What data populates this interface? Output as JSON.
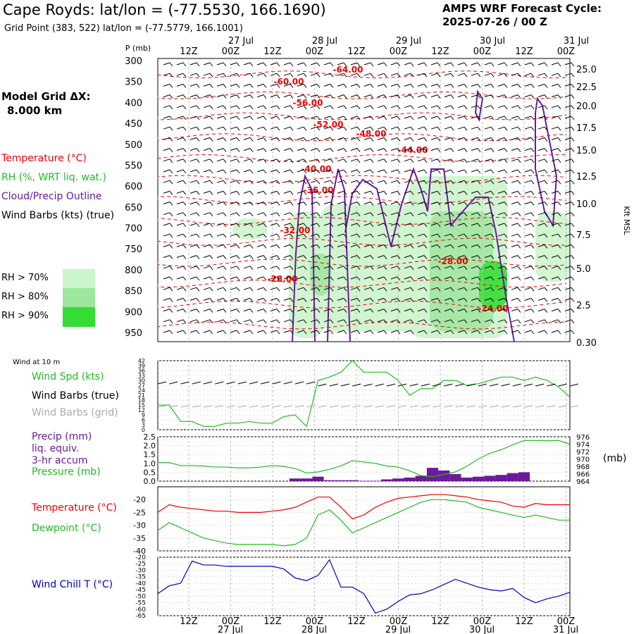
{
  "header": {
    "title": "Cape Royds:  lat/lon = (-77.5530, 166.1690)",
    "subtitle": "Grid Point (383, 522) lat/lon = (-77.5779, 166.1001)",
    "cycle_line1": "AMPS WRF Forecast Cycle:",
    "cycle_line2": "2025-07-26 / 00  Z"
  },
  "legend": {
    "model_grid_line1": "Model Grid ΔX:",
    "model_grid_line2": "8.000 km",
    "temperature": "Temperature (°C)",
    "rh": "RH (%, WRT liq. wat.)",
    "cloud": "Cloud/Precip Outline",
    "wind": "Wind Barbs (kts) (true)",
    "rh70": "RH > 70%",
    "rh80": "RH > 80%",
    "rh90": "RH > 90%",
    "wind_at_10m": "Wind at 10 m",
    "wind_spd": "Wind Spd (kts)",
    "wind_barbs_true": "Wind Barbs (true)",
    "wind_barbs_grid": "Wind Barbs (grid)",
    "precip_1": "Precip (mm)",
    "precip_2": "liq. equiv.",
    "precip_3": "3-hr accum",
    "pressure": "Pressure (mb)",
    "pressure_unit": "(mb)",
    "temperature2": "Temperature (°C)",
    "dewpoint": "Dewpoint (°C)",
    "wind_chill": "Wind Chill T (°C)"
  },
  "colors": {
    "temperature": "#ee0000",
    "rh_label": "#22bb22",
    "cloud": "#6a1a9a",
    "rh70": "#ccf5cc",
    "rh80": "#9ee69e",
    "rh90": "#33dd33",
    "wind_chill": "#0000bb",
    "barbs_grid": "#aaaaaa"
  },
  "time_axis": {
    "top_tick_labels": [
      "12Z",
      "00Z",
      "12Z",
      "00Z",
      "12Z",
      "00Z",
      "12Z",
      "00Z",
      "12Z",
      "00Z"
    ],
    "top_date_labels": [
      "27 Jul",
      "28 Jul",
      "29 Jul",
      "30 Jul",
      "31 Jul"
    ],
    "bottom_tick_labels": [
      "12Z",
      "00Z",
      "12Z",
      "00Z",
      "12Z",
      "00Z",
      "12Z",
      "00Z",
      "12Z",
      "00Z"
    ],
    "bottom_date_labels": [
      "27 Jul",
      "28 Jul",
      "29 Jul",
      "30 Jul",
      "31 Jul"
    ]
  },
  "chart_data": [
    {
      "type": "heatmap",
      "panel": "profile",
      "ylabel": "P (mb)",
      "y2label": "Kft MSL",
      "p_ticks": [
        300,
        350,
        400,
        450,
        500,
        550,
        600,
        650,
        700,
        750,
        800,
        850,
        900,
        950
      ],
      "kft_ticks": [
        "25.0",
        "22.5",
        "20.0",
        "17.5",
        "15.0",
        "12.5",
        "10.0",
        "7.5",
        "5.0",
        "2.5",
        "0.30"
      ],
      "temperature_labels": [
        "-64.00",
        "-60.00",
        "-56.00",
        "-52.00",
        "-48.00",
        "-44.00",
        "-40.00",
        "-36.00",
        "-32.00",
        "-28.00",
        "-28.00",
        "-24.00"
      ]
    },
    {
      "type": "line",
      "panel": "wind",
      "y_ticks": [
        0,
        3,
        6,
        9,
        12,
        15,
        18,
        21,
        24,
        27,
        30,
        33,
        36,
        39,
        42
      ],
      "ylim": [
        0,
        42
      ],
      "series": [
        {
          "name": "Wind Spd (kts)",
          "values": [
            15,
            15,
            5,
            5,
            2,
            2,
            4,
            4,
            5,
            4,
            4,
            8,
            9,
            2,
            30,
            32,
            35,
            42,
            35,
            35,
            35,
            30,
            21,
            25,
            25,
            30,
            30,
            27,
            28,
            30,
            32,
            32,
            30,
            32,
            30,
            26,
            20
          ]
        }
      ]
    },
    {
      "type": "bar",
      "panel": "precip",
      "y_ticks": [
        "0.0",
        "0.5",
        "1.0",
        "1.5",
        "2.0",
        "2.5"
      ],
      "ylim": [
        0,
        2.5
      ],
      "y2_ticks": [
        964,
        966,
        968,
        970,
        972,
        974,
        976
      ],
      "y2lim": [
        964,
        976
      ],
      "precip_values": [
        0,
        0,
        0,
        0,
        0,
        0,
        0,
        0,
        0,
        0,
        0,
        0,
        0.15,
        0.15,
        0.25,
        0.05,
        0.05,
        0.05,
        0.02,
        0.02,
        0.1,
        0.15,
        0.2,
        0.3,
        0.75,
        0.6,
        0.4,
        0.2,
        0.25,
        0.3,
        0.35,
        0.45,
        0.5,
        0,
        0,
        0,
        0
      ],
      "series": [
        {
          "name": "Pressure (mb)",
          "values": [
            969,
            969,
            968.2,
            968.2,
            968.1,
            967.8,
            967.8,
            967.6,
            967.6,
            967.8,
            968.2,
            968,
            967.4,
            966.2,
            966.5,
            967.2,
            968.1,
            969.5,
            969.2,
            968.8,
            968.1,
            967.8,
            966.8,
            965.5,
            965.2,
            965.8,
            966.5,
            968,
            970,
            971.5,
            972.5,
            973.8,
            975,
            975,
            974.9,
            975,
            974
          ]
        }
      ]
    },
    {
      "type": "line",
      "panel": "temperature",
      "y_ticks": [
        -40,
        -35,
        -30,
        -25,
        -20
      ],
      "ylim": [
        -40,
        -15
      ],
      "series": [
        {
          "name": "Temperature (°C)",
          "values": [
            -25,
            -22,
            -23,
            -23.5,
            -24,
            -24.5,
            -24.5,
            -25,
            -25,
            -25,
            -24.5,
            -24,
            -23,
            -21,
            -19,
            -19,
            -23,
            -27.5,
            -26,
            -23,
            -21,
            -19.5,
            -19,
            -18.5,
            -18,
            -18,
            -18.5,
            -19,
            -20,
            -20.5,
            -21,
            -22.5,
            -23,
            -21.5,
            -22,
            -22,
            -22
          ]
        },
        {
          "name": "Dewpoint (°C)",
          "values": [
            -32,
            -29,
            -31,
            -33,
            -35,
            -36,
            -37,
            -37.5,
            -37.5,
            -37.5,
            -37.5,
            -38,
            -37.5,
            -35,
            -26,
            -24,
            -28,
            -33,
            -31,
            -29,
            -27,
            -25,
            -23,
            -21,
            -20,
            -20,
            -20.5,
            -21,
            -23,
            -24,
            -25,
            -26,
            -27,
            -26,
            -27,
            -28,
            -28
          ]
        }
      ]
    },
    {
      "type": "line",
      "panel": "windchill",
      "y_ticks": [
        -65,
        -60,
        -55,
        -50,
        -45,
        -40,
        -35,
        -30,
        -25,
        -20
      ],
      "ylim": [
        -65,
        -20
      ],
      "series": [
        {
          "name": "Wind Chill T (°C)",
          "values": [
            -48,
            -42,
            -40,
            -23,
            -26,
            -26,
            -27,
            -27,
            -27,
            -27,
            -27,
            -29,
            -36,
            -38,
            -34,
            -22,
            -43,
            -43,
            -48,
            -63,
            -60,
            -54,
            -49,
            -48,
            -45,
            -41,
            -37,
            -40,
            -43,
            -45,
            -46,
            -44,
            -51,
            -55,
            -52,
            -50,
            -47
          ]
        }
      ]
    }
  ]
}
